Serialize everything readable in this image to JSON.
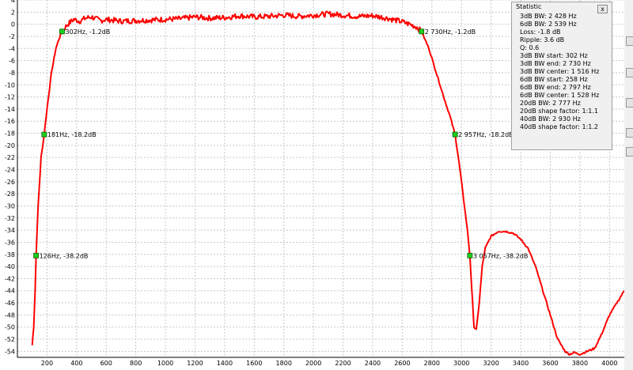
{
  "chart_data": {
    "type": "line",
    "xlabel": "",
    "ylabel": "",
    "xlim": [
      0,
      4100
    ],
    "ylim": [
      -55,
      4
    ],
    "x_ticks": [
      200,
      400,
      600,
      800,
      1000,
      1200,
      1400,
      1600,
      1800,
      2000,
      2200,
      2400,
      2600,
      2800,
      3000,
      3200,
      3400,
      3600,
      3800,
      4000
    ],
    "y_ticks": [
      4,
      2,
      0,
      -2,
      -4,
      -6,
      -8,
      -10,
      -12,
      -14,
      -16,
      -18,
      -20,
      -22,
      -24,
      -26,
      -28,
      -30,
      -32,
      -34,
      -36,
      -38,
      -40,
      -42,
      -44,
      -46,
      -48,
      -50,
      -52,
      -54
    ],
    "grid": true,
    "series": [
      {
        "color": "#ff0000",
        "x": [
          100,
          110,
          120,
          126,
          140,
          160,
          181,
          200,
          230,
          260,
          280,
          302,
          340,
          380,
          420,
          460,
          500,
          560,
          600,
          700,
          800,
          900,
          1000,
          1100,
          1200,
          1300,
          1400,
          1500,
          1600,
          1700,
          1800,
          1900,
          2000,
          2100,
          2200,
          2300,
          2400,
          2500,
          2600,
          2650,
          2700,
          2730,
          2780,
          2830,
          2880,
          2920,
          2957,
          2990,
          3020,
          3040,
          3057,
          3070,
          3085,
          3100,
          3120,
          3140,
          3160,
          3200,
          3250,
          3300,
          3350,
          3400,
          3450,
          3500,
          3550,
          3600,
          3650,
          3700,
          3730,
          3760,
          3800,
          3850,
          3900,
          3950,
          4000,
          4050,
          4100
        ],
        "y": [
          -53,
          -50,
          -44,
          -38.2,
          -30,
          -22,
          -18.2,
          -14,
          -8,
          -4,
          -2.5,
          -1.2,
          0,
          0.8,
          0.5,
          1,
          1.2,
          0.6,
          0.8,
          0.5,
          0.6,
          0.7,
          0.8,
          0.9,
          1.2,
          1.0,
          1.1,
          1.4,
          1.2,
          1.3,
          1.5,
          1.3,
          1.5,
          1.7,
          1.5,
          1.3,
          1.4,
          1.0,
          0.4,
          0,
          -0.5,
          -1.2,
          -4,
          -8,
          -12,
          -15,
          -18.2,
          -24,
          -30,
          -34,
          -38.2,
          -44,
          -50,
          -50.5,
          -46,
          -40,
          -37,
          -35,
          -34.2,
          -34.2,
          -34.5,
          -35.5,
          -37,
          -40,
          -44,
          -48,
          -52,
          -54,
          -54.5,
          -54.2,
          -54.5,
          -54,
          -53.5,
          -51,
          -48,
          -46,
          -44
        ]
      }
    ],
    "markers": [
      {
        "x": 126,
        "y": -38.2,
        "label": "126Hz, -38.2dB"
      },
      {
        "x": 181,
        "y": -18.2,
        "label": "181Hz, -18.2dB"
      },
      {
        "x": 302,
        "y": -1.2,
        "label": "302Hz, -1.2dB"
      },
      {
        "x": 2730,
        "y": -1.2,
        "label": "2 730Hz, -1.2dB"
      },
      {
        "x": 2957,
        "y": -18.2,
        "label": "2 957Hz, -18.2dB"
      },
      {
        "x": 3057,
        "y": -38.2,
        "label": "3 057Hz, -38.2dB"
      }
    ]
  },
  "stats_panel": {
    "title": "Statistic",
    "close_label": "x",
    "lines": [
      "3dB BW: 2 428 Hz",
      "6dB BW: 2 539 Hz",
      "Loss: -1.8 dB",
      "Ripple: 3.6 dB",
      "Q: 0.6",
      "3dB BW start: 302 Hz",
      "3dB BW end: 2 730 Hz",
      "3dB BW center: 1 516 Hz",
      "6dB BW start: 258 Hz",
      "6dB BW end: 2 797 Hz",
      "6dB BW center: 1 528 Hz",
      "20dB BW: 2 777 Hz",
      "20dB shape factor: 1:1.1",
      "40dB BW: 2 930 Hz",
      "40dB shape factor: 1:1.2"
    ]
  },
  "colors": {
    "curve": "#ff0000",
    "marker_fill": "#22cc22",
    "grid": "#c8c8c8",
    "axis": "#000000"
  }
}
